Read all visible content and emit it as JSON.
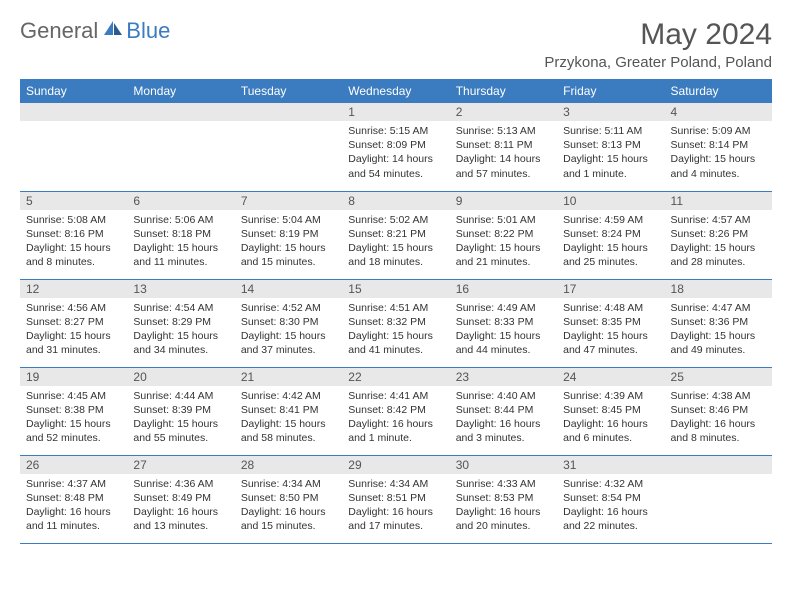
{
  "logo": {
    "general": "General",
    "blue": "Blue"
  },
  "title": "May 2024",
  "location": "Przykona, Greater Poland, Poland",
  "colors": {
    "header_bg": "#3b7bbf",
    "header_text": "#ffffff",
    "daynum_bg": "#e8e8e8",
    "border": "#3b7bbf",
    "text": "#333333",
    "logo_gray": "#666666"
  },
  "weekdays": [
    "Sunday",
    "Monday",
    "Tuesday",
    "Wednesday",
    "Thursday",
    "Friday",
    "Saturday"
  ],
  "weeks": [
    [
      null,
      null,
      null,
      {
        "n": "1",
        "sr": "5:15 AM",
        "ss": "8:09 PM",
        "d": "14 hours and 54 minutes."
      },
      {
        "n": "2",
        "sr": "5:13 AM",
        "ss": "8:11 PM",
        "d": "14 hours and 57 minutes."
      },
      {
        "n": "3",
        "sr": "5:11 AM",
        "ss": "8:13 PM",
        "d": "15 hours and 1 minute."
      },
      {
        "n": "4",
        "sr": "5:09 AM",
        "ss": "8:14 PM",
        "d": "15 hours and 4 minutes."
      }
    ],
    [
      {
        "n": "5",
        "sr": "5:08 AM",
        "ss": "8:16 PM",
        "d": "15 hours and 8 minutes."
      },
      {
        "n": "6",
        "sr": "5:06 AM",
        "ss": "8:18 PM",
        "d": "15 hours and 11 minutes."
      },
      {
        "n": "7",
        "sr": "5:04 AM",
        "ss": "8:19 PM",
        "d": "15 hours and 15 minutes."
      },
      {
        "n": "8",
        "sr": "5:02 AM",
        "ss": "8:21 PM",
        "d": "15 hours and 18 minutes."
      },
      {
        "n": "9",
        "sr": "5:01 AM",
        "ss": "8:22 PM",
        "d": "15 hours and 21 minutes."
      },
      {
        "n": "10",
        "sr": "4:59 AM",
        "ss": "8:24 PM",
        "d": "15 hours and 25 minutes."
      },
      {
        "n": "11",
        "sr": "4:57 AM",
        "ss": "8:26 PM",
        "d": "15 hours and 28 minutes."
      }
    ],
    [
      {
        "n": "12",
        "sr": "4:56 AM",
        "ss": "8:27 PM",
        "d": "15 hours and 31 minutes."
      },
      {
        "n": "13",
        "sr": "4:54 AM",
        "ss": "8:29 PM",
        "d": "15 hours and 34 minutes."
      },
      {
        "n": "14",
        "sr": "4:52 AM",
        "ss": "8:30 PM",
        "d": "15 hours and 37 minutes."
      },
      {
        "n": "15",
        "sr": "4:51 AM",
        "ss": "8:32 PM",
        "d": "15 hours and 41 minutes."
      },
      {
        "n": "16",
        "sr": "4:49 AM",
        "ss": "8:33 PM",
        "d": "15 hours and 44 minutes."
      },
      {
        "n": "17",
        "sr": "4:48 AM",
        "ss": "8:35 PM",
        "d": "15 hours and 47 minutes."
      },
      {
        "n": "18",
        "sr": "4:47 AM",
        "ss": "8:36 PM",
        "d": "15 hours and 49 minutes."
      }
    ],
    [
      {
        "n": "19",
        "sr": "4:45 AM",
        "ss": "8:38 PM",
        "d": "15 hours and 52 minutes."
      },
      {
        "n": "20",
        "sr": "4:44 AM",
        "ss": "8:39 PM",
        "d": "15 hours and 55 minutes."
      },
      {
        "n": "21",
        "sr": "4:42 AM",
        "ss": "8:41 PM",
        "d": "15 hours and 58 minutes."
      },
      {
        "n": "22",
        "sr": "4:41 AM",
        "ss": "8:42 PM",
        "d": "16 hours and 1 minute."
      },
      {
        "n": "23",
        "sr": "4:40 AM",
        "ss": "8:44 PM",
        "d": "16 hours and 3 minutes."
      },
      {
        "n": "24",
        "sr": "4:39 AM",
        "ss": "8:45 PM",
        "d": "16 hours and 6 minutes."
      },
      {
        "n": "25",
        "sr": "4:38 AM",
        "ss": "8:46 PM",
        "d": "16 hours and 8 minutes."
      }
    ],
    [
      {
        "n": "26",
        "sr": "4:37 AM",
        "ss": "8:48 PM",
        "d": "16 hours and 11 minutes."
      },
      {
        "n": "27",
        "sr": "4:36 AM",
        "ss": "8:49 PM",
        "d": "16 hours and 13 minutes."
      },
      {
        "n": "28",
        "sr": "4:34 AM",
        "ss": "8:50 PM",
        "d": "16 hours and 15 minutes."
      },
      {
        "n": "29",
        "sr": "4:34 AM",
        "ss": "8:51 PM",
        "d": "16 hours and 17 minutes."
      },
      {
        "n": "30",
        "sr": "4:33 AM",
        "ss": "8:53 PM",
        "d": "16 hours and 20 minutes."
      },
      {
        "n": "31",
        "sr": "4:32 AM",
        "ss": "8:54 PM",
        "d": "16 hours and 22 minutes."
      },
      null
    ]
  ],
  "labels": {
    "sunrise": "Sunrise:",
    "sunset": "Sunset:",
    "daylight": "Daylight:"
  }
}
